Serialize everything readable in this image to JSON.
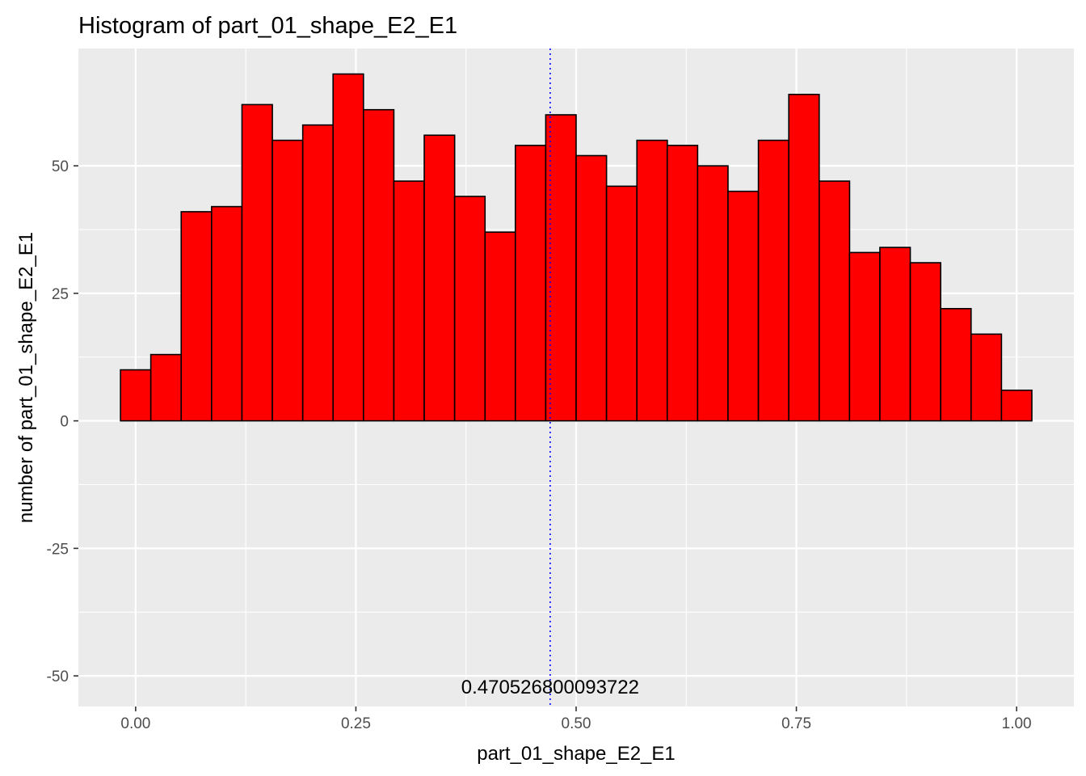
{
  "chart_data": {
    "type": "bar",
    "title": "Histogram of  part_01_shape_E2_E1",
    "xlabel": "part_01_shape_E2_E1",
    "ylabel": "number of  part_01_shape_E2_E1",
    "xlim": [
      -0.065,
      1.065
    ],
    "ylim": [
      -56,
      73
    ],
    "x_ticks": [
      {
        "value": 0.0,
        "label": "0.00"
      },
      {
        "value": 0.25,
        "label": "0.25"
      },
      {
        "value": 0.5,
        "label": "0.50"
      },
      {
        "value": 0.75,
        "label": "0.75"
      },
      {
        "value": 1.0,
        "label": "1.00"
      }
    ],
    "y_ticks": [
      {
        "value": -50,
        "label": "-50"
      },
      {
        "value": -25,
        "label": "-25"
      },
      {
        "value": 0,
        "label": "0"
      },
      {
        "value": 25,
        "label": "25"
      },
      {
        "value": 50,
        "label": "50"
      }
    ],
    "bin_width": 0.0345,
    "bins": [
      {
        "x0": -0.0172,
        "count": 10
      },
      {
        "x0": 0.0172,
        "count": 13
      },
      {
        "x0": 0.0517,
        "count": 41
      },
      {
        "x0": 0.0862,
        "count": 42
      },
      {
        "x0": 0.1207,
        "count": 62
      },
      {
        "x0": 0.1552,
        "count": 55
      },
      {
        "x0": 0.1897,
        "count": 58
      },
      {
        "x0": 0.2241,
        "count": 68
      },
      {
        "x0": 0.2586,
        "count": 61
      },
      {
        "x0": 0.2931,
        "count": 47
      },
      {
        "x0": 0.3276,
        "count": 56
      },
      {
        "x0": 0.3621,
        "count": 44
      },
      {
        "x0": 0.3966,
        "count": 37
      },
      {
        "x0": 0.431,
        "count": 54
      },
      {
        "x0": 0.4655,
        "count": 60
      },
      {
        "x0": 0.5,
        "count": 52
      },
      {
        "x0": 0.5345,
        "count": 46
      },
      {
        "x0": 0.569,
        "count": 55
      },
      {
        "x0": 0.6034,
        "count": 54
      },
      {
        "x0": 0.6379,
        "count": 50
      },
      {
        "x0": 0.6724,
        "count": 45
      },
      {
        "x0": 0.7069,
        "count": 55
      },
      {
        "x0": 0.7414,
        "count": 64
      },
      {
        "x0": 0.7759,
        "count": 47
      },
      {
        "x0": 0.8103,
        "count": 33
      },
      {
        "x0": 0.8448,
        "count": 34
      },
      {
        "x0": 0.8793,
        "count": 31
      },
      {
        "x0": 0.9138,
        "count": 22
      },
      {
        "x0": 0.9483,
        "count": 17
      },
      {
        "x0": 0.9828,
        "count": 6
      }
    ],
    "mean_line": {
      "value": 0.470526800093722,
      "label": "0.470526800093722",
      "style": "dotted"
    },
    "grid": true,
    "colors": {
      "bar_fill": "#ff0000",
      "bar_outline": "#000000",
      "panel_background": "#ebebeb",
      "gridline": "#ffffff",
      "mean_line": "#0000ff"
    }
  }
}
